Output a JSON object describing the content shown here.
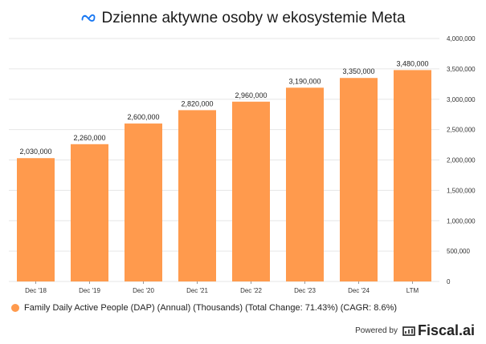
{
  "header": {
    "title": "Dzienne aktywne osoby w ekosystemie Meta",
    "logo_icon": "meta-infinity-logo"
  },
  "legend": {
    "label": "Family Daily Active People (DAP) (Annual) (Thousands) (Total Change: 71.43%) (CAGR: 8.6%)"
  },
  "footer": {
    "powered_by": "Powered by",
    "brand": "Fiscal.ai",
    "brand_icon": "fiscal-ai-logo"
  },
  "colors": {
    "bar": "#FF9A4D",
    "grid": "#e6e6e6",
    "text": "#222222",
    "logo": "#1877F2"
  },
  "chart_data": {
    "type": "bar",
    "categories": [
      "Dec '18",
      "Dec '19",
      "Dec '20",
      "Dec '21",
      "Dec '22",
      "Dec '23",
      "Dec '24",
      "LTM"
    ],
    "series": [
      {
        "name": "Family Daily Active People (DAP) (Annual) (Thousands)",
        "values": [
          2030000,
          2260000,
          2600000,
          2820000,
          2960000,
          3190000,
          3350000,
          3480000
        ],
        "value_labels": [
          "2,030,000",
          "2,260,000",
          "2,600,000",
          "2,820,000",
          "2,960,000",
          "3,190,000",
          "3,350,000",
          "3,480,000"
        ]
      }
    ],
    "y_ticks": [
      0,
      500000,
      1000000,
      1500000,
      2000000,
      2500000,
      3000000,
      3500000,
      4000000
    ],
    "y_tick_labels": [
      "0",
      "500,000",
      "1,000,000",
      "1,500,000",
      "2,000,000",
      "2,500,000",
      "3,000,000",
      "3,500,000",
      "4,000,000"
    ],
    "ylim": [
      0,
      4000000
    ],
    "y_axis_side": "right",
    "grid": true,
    "legend_position": "bottom-left"
  }
}
